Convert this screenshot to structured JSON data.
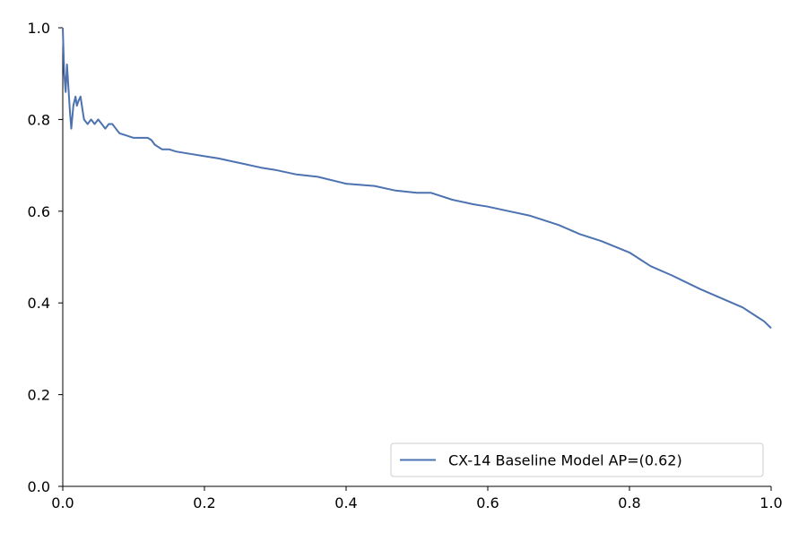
{
  "chart_data": {
    "type": "line",
    "title": "",
    "xlabel": "",
    "ylabel": "",
    "xlim": [
      0.0,
      1.0
    ],
    "ylim": [
      0.0,
      1.0
    ],
    "x_ticks": [
      "0.0",
      "0.2",
      "0.4",
      "0.6",
      "0.8",
      "1.0"
    ],
    "y_ticks": [
      "0.0",
      "0.2",
      "0.4",
      "0.6",
      "0.8",
      "1.0"
    ],
    "grid": false,
    "legend_position": "lower-right",
    "series": [
      {
        "name": "CX-14 Baseline Model AP=(0.62)",
        "color": "#4c72b0",
        "x": [
          0.0,
          0.002,
          0.004,
          0.006,
          0.008,
          0.01,
          0.012,
          0.015,
          0.018,
          0.02,
          0.022,
          0.025,
          0.028,
          0.03,
          0.035,
          0.04,
          0.045,
          0.05,
          0.055,
          0.06,
          0.065,
          0.07,
          0.08,
          0.09,
          0.1,
          0.11,
          0.12,
          0.125,
          0.13,
          0.14,
          0.15,
          0.16,
          0.18,
          0.2,
          0.22,
          0.25,
          0.28,
          0.3,
          0.33,
          0.36,
          0.4,
          0.44,
          0.47,
          0.5,
          0.52,
          0.55,
          0.58,
          0.6,
          0.63,
          0.66,
          0.7,
          0.73,
          0.76,
          0.8,
          0.83,
          0.86,
          0.9,
          0.93,
          0.96,
          0.98,
          0.99,
          1.0
        ],
        "y": [
          1.0,
          0.9,
          0.86,
          0.92,
          0.87,
          0.82,
          0.78,
          0.83,
          0.85,
          0.83,
          0.84,
          0.85,
          0.82,
          0.8,
          0.79,
          0.8,
          0.79,
          0.8,
          0.79,
          0.78,
          0.79,
          0.79,
          0.77,
          0.765,
          0.76,
          0.76,
          0.76,
          0.755,
          0.745,
          0.735,
          0.735,
          0.73,
          0.725,
          0.72,
          0.715,
          0.705,
          0.695,
          0.69,
          0.68,
          0.675,
          0.66,
          0.655,
          0.645,
          0.64,
          0.64,
          0.625,
          0.615,
          0.61,
          0.6,
          0.59,
          0.57,
          0.55,
          0.535,
          0.51,
          0.48,
          0.46,
          0.43,
          0.41,
          0.39,
          0.37,
          0.36,
          0.345
        ]
      }
    ]
  }
}
